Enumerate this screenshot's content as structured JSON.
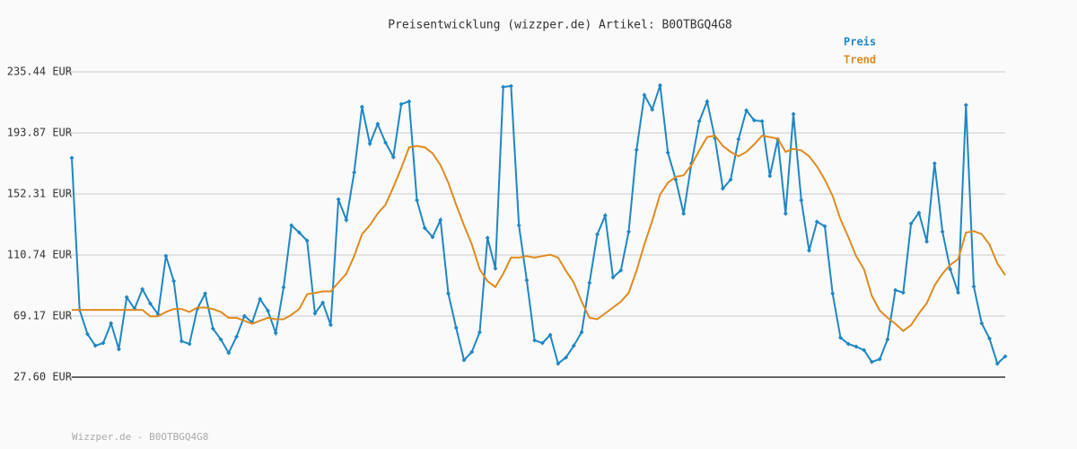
{
  "chart_data": {
    "type": "line",
    "title": "Preisentwicklung (wizzper.de) Artikel: B0OTBGQ4G8",
    "source": "Wizzper.de - B0OTBGQ4G8",
    "ylim": [
      27.6,
      235.44
    ],
    "yticks": [
      {
        "value": 27.6,
        "label": "27.60 EUR"
      },
      {
        "value": 69.17,
        "label": "69.17 EUR"
      },
      {
        "value": 110.74,
        "label": "110.74 EUR"
      },
      {
        "value": 152.31,
        "label": "152.31 EUR"
      },
      {
        "value": 193.87,
        "label": "193.87 EUR"
      },
      {
        "value": 235.44,
        "label": "235.44 EUR"
      }
    ],
    "grid": true,
    "legend_position": "top-right",
    "series": [
      {
        "name": "Preis",
        "color": "#1f87c4",
        "markers": true,
        "values": [
          176.8,
          73.4,
          56.9,
          49.0,
          50.8,
          64.3,
          46.6,
          82.0,
          74.1,
          87.5,
          77.7,
          70.4,
          110.1,
          93.0,
          52.1,
          50.2,
          74.1,
          84.5,
          60.6,
          53.3,
          44.1,
          55.1,
          69.2,
          64.9,
          80.8,
          72.8,
          57.6,
          88.7,
          130.9,
          126.0,
          120.5,
          71.0,
          78.3,
          63.1,
          148.6,
          134.6,
          167.0,
          211.6,
          186.5,
          200.0,
          187.2,
          177.4,
          213.4,
          215.3,
          148.0,
          129.1,
          123.0,
          134.6,
          84.5,
          61.2,
          39.2,
          44.7,
          58.2,
          122.4,
          101.6,
          225.1,
          225.7,
          130.9,
          93.6,
          52.7,
          50.8,
          56.3,
          36.8,
          41.0,
          49.0,
          58.2,
          91.8,
          124.8,
          137.6,
          95.5,
          100.3,
          126.6,
          182.3,
          219.6,
          209.8,
          226.3,
          180.4,
          162.1,
          138.9,
          173.1,
          201.8,
          215.3,
          190.2,
          156.0,
          162.1,
          189.6,
          209.2,
          202.4,
          201.8,
          164.5,
          189.6,
          138.9,
          206.7,
          148.0,
          113.8,
          133.4,
          130.3,
          84.5,
          54.5,
          50.2,
          48.4,
          46.0,
          38.0,
          39.8,
          53.3,
          86.9,
          85.1,
          132.1,
          139.5,
          119.9,
          173.1,
          126.6,
          101.0,
          85.1,
          212.8,
          89.3,
          64.3,
          53.9,
          36.8,
          41.7
        ]
      },
      {
        "name": "Trend",
        "color": "#e08a1e",
        "markers": false,
        "values": [
          73.4,
          73.4,
          73.4,
          73.4,
          73.4,
          73.4,
          73.4,
          73.4,
          73.4,
          73.4,
          69,
          69,
          72,
          74,
          74,
          72,
          75,
          75,
          74,
          72,
          68,
          68,
          66,
          64,
          66,
          68,
          67,
          67,
          70,
          74,
          84,
          85,
          86,
          86,
          92,
          98,
          110,
          125,
          131,
          139,
          145,
          157,
          170,
          184,
          185,
          184,
          180,
          172,
          160,
          145,
          131,
          118,
          101,
          93,
          89,
          98,
          109,
          109,
          110,
          109,
          110,
          111,
          109,
          100,
          92,
          79,
          68,
          67,
          71,
          75,
          79,
          85,
          100,
          118,
          134,
          152,
          160,
          164,
          165,
          172,
          182,
          191,
          192,
          185,
          181,
          178,
          181,
          186,
          192,
          191,
          190,
          181,
          183,
          182,
          178,
          171,
          162,
          151,
          135,
          123,
          110,
          101,
          83,
          73,
          68,
          64,
          59,
          63,
          71,
          78,
          90,
          98,
          104,
          108,
          126,
          127,
          125,
          118,
          105,
          97
        ]
      }
    ]
  }
}
